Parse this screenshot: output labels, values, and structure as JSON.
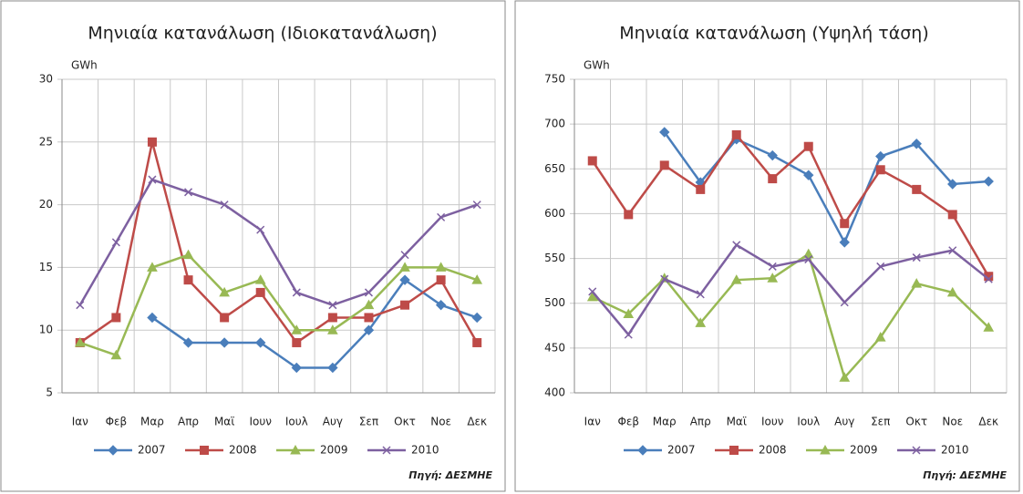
{
  "chart_data": [
    {
      "type": "line",
      "title": "Μηνιαία κατανάλωση (Ιδιοκατανάλωση)",
      "y_label": "GWh",
      "source": "Πηγή: ΔΕΣΜΗΕ",
      "categories": [
        "Ιαν",
        "Φεβ",
        "Μαρ",
        "Απρ",
        "Μαϊ",
        "Ιουν",
        "Ιουλ",
        "Αυγ",
        "Σεπ",
        "Οκτ",
        "Νοε",
        "Δεκ"
      ],
      "ylim": [
        5,
        30
      ],
      "yticks": [
        5,
        10,
        15,
        20,
        25,
        30
      ],
      "grid": true,
      "legend": "bottom",
      "series": [
        {
          "name": "2007",
          "color": "#4a7ebb",
          "marker": "diamond",
          "values": [
            null,
            null,
            11,
            9,
            9,
            9,
            7,
            7,
            10,
            14,
            12,
            11
          ]
        },
        {
          "name": "2008",
          "color": "#be4b48",
          "marker": "square",
          "values": [
            9,
            11,
            25,
            14,
            11,
            13,
            9,
            11,
            11,
            12,
            14,
            9
          ]
        },
        {
          "name": "2009",
          "color": "#98b954",
          "marker": "triangle",
          "values": [
            9,
            8,
            15,
            16,
            13,
            14,
            10,
            10,
            12,
            15,
            15,
            14
          ]
        },
        {
          "name": "2010",
          "color": "#7d60a0",
          "marker": "x",
          "values": [
            12,
            17,
            22,
            21,
            20,
            18,
            13,
            12,
            13,
            16,
            19,
            20
          ]
        }
      ]
    },
    {
      "type": "line",
      "title": "Μηνιαία κατανάλωση (Υψηλή τάση)",
      "y_label": "GWh",
      "source": "Πηγή: ΔΕΣΜΗΕ",
      "categories": [
        "Ιαν",
        "Φεβ",
        "Μαρ",
        "Απρ",
        "Μαϊ",
        "Ιουν",
        "Ιουλ",
        "Αυγ",
        "Σεπ",
        "Οκτ",
        "Νοε",
        "Δεκ"
      ],
      "ylim": [
        400,
        750
      ],
      "yticks": [
        400,
        450,
        500,
        550,
        600,
        650,
        700,
        750
      ],
      "grid": true,
      "legend": "bottom",
      "series": [
        {
          "name": "2007",
          "color": "#4a7ebb",
          "marker": "diamond",
          "values": [
            null,
            null,
            691,
            635,
            683,
            665,
            643,
            568,
            664,
            678,
            633,
            636
          ]
        },
        {
          "name": "2008",
          "color": "#be4b48",
          "marker": "square",
          "values": [
            659,
            599,
            654,
            627,
            688,
            639,
            675,
            589,
            649,
            627,
            599,
            530
          ]
        },
        {
          "name": "2009",
          "color": "#98b954",
          "marker": "triangle",
          "values": [
            507,
            488,
            528,
            478,
            526,
            528,
            555,
            417,
            462,
            522,
            512,
            473
          ]
        },
        {
          "name": "2010",
          "color": "#7d60a0",
          "marker": "x",
          "values": [
            513,
            465,
            527,
            510,
            565,
            541,
            549,
            501,
            541,
            551,
            559,
            527
          ]
        }
      ]
    }
  ]
}
